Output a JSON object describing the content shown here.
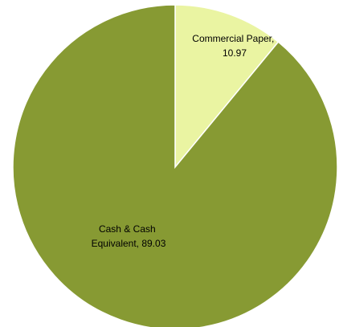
{
  "chart_data": {
    "type": "pie",
    "start_angle_deg": 0,
    "direction": "clockwise",
    "slices": [
      {
        "label_lines": [
          "Commercial Paper,",
          "10.97"
        ],
        "name": "Commercial Paper",
        "value": 10.97,
        "color": "#EAF4A2"
      },
      {
        "label_lines": [
          "Cash & Cash",
          "Equivalent, 89.03"
        ],
        "name": "Cash & Cash Equivalent",
        "value": 89.03,
        "color": "#879A33"
      }
    ],
    "legend": "none"
  }
}
